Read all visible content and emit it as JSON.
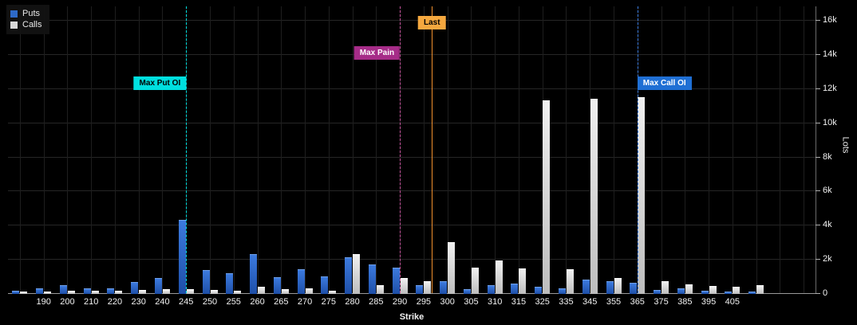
{
  "axes": {
    "y_ticks": [
      "16k",
      "14k",
      "12k",
      "10k",
      "8k",
      "6k",
      "4k",
      "2k",
      "0"
    ]
  },
  "chart_data": {
    "type": "bar",
    "xlabel": "Strike",
    "ylabel": "Lots",
    "ylim": [
      0,
      16800
    ],
    "y_tick_step": 2000,
    "grid": true,
    "legend_position": "top-left",
    "categories": [
      "",
      "190",
      "200",
      "210",
      "220",
      "230",
      "240",
      "245",
      "250",
      "255",
      "260",
      "265",
      "270",
      "275",
      "280",
      "285",
      "290",
      "295",
      "300",
      "305",
      "310",
      "315",
      "325",
      "335",
      "345",
      "355",
      "365",
      "375",
      "385",
      "395",
      "405",
      "",
      "",
      ""
    ],
    "series": [
      {
        "name": "Puts",
        "color": "#2e6ac8",
        "values": [
          150,
          280,
          480,
          280,
          300,
          650,
          900,
          4300,
          1350,
          1150,
          2300,
          950,
          1400,
          1000,
          2100,
          1700,
          1500,
          450,
          700,
          250,
          450,
          550,
          350,
          300,
          800,
          700,
          600,
          200,
          300,
          150,
          100,
          50,
          0,
          0
        ]
      },
      {
        "name": "Calls",
        "color": "#d8d8d8",
        "values": [
          60,
          80,
          150,
          120,
          130,
          200,
          250,
          250,
          200,
          150,
          350,
          250,
          300,
          150,
          2300,
          450,
          900,
          700,
          3000,
          1500,
          1900,
          1450,
          11300,
          1400,
          11400,
          900,
          11500,
          700,
          500,
          400,
          350,
          450,
          0,
          0
        ]
      }
    ],
    "markers": [
      {
        "id": "max-put-oi",
        "label": "Max Put OI",
        "strike": "245",
        "index": 7,
        "line_style": "dashed",
        "line_color": "#00dfdf",
        "box_bg": "#00dfdf",
        "box_fg": "#000000",
        "box_top": 88,
        "anchor": "right"
      },
      {
        "id": "max-pain",
        "label": "Max Pain",
        "strike": "290",
        "index": 16,
        "line_style": "dashed",
        "line_color": "#c8539e",
        "box_bg": "#a62c88",
        "box_fg": "#ffffff",
        "box_top": 50,
        "anchor": "right"
      },
      {
        "id": "last",
        "label": "Last",
        "index": 17.35,
        "line_style": "solid",
        "line_color": "#ef8f2d",
        "box_bg": "#f5a83f",
        "box_fg": "#000000",
        "box_top": 12,
        "anchor": "center"
      },
      {
        "id": "max-call-oi",
        "label": "Max Call OI",
        "strike": "365",
        "index": 26,
        "line_style": "dashed",
        "line_color": "#3d7de0",
        "box_bg": "#1f6fd4",
        "box_fg": "#ffffff",
        "box_top": 88,
        "anchor": "left"
      }
    ]
  }
}
